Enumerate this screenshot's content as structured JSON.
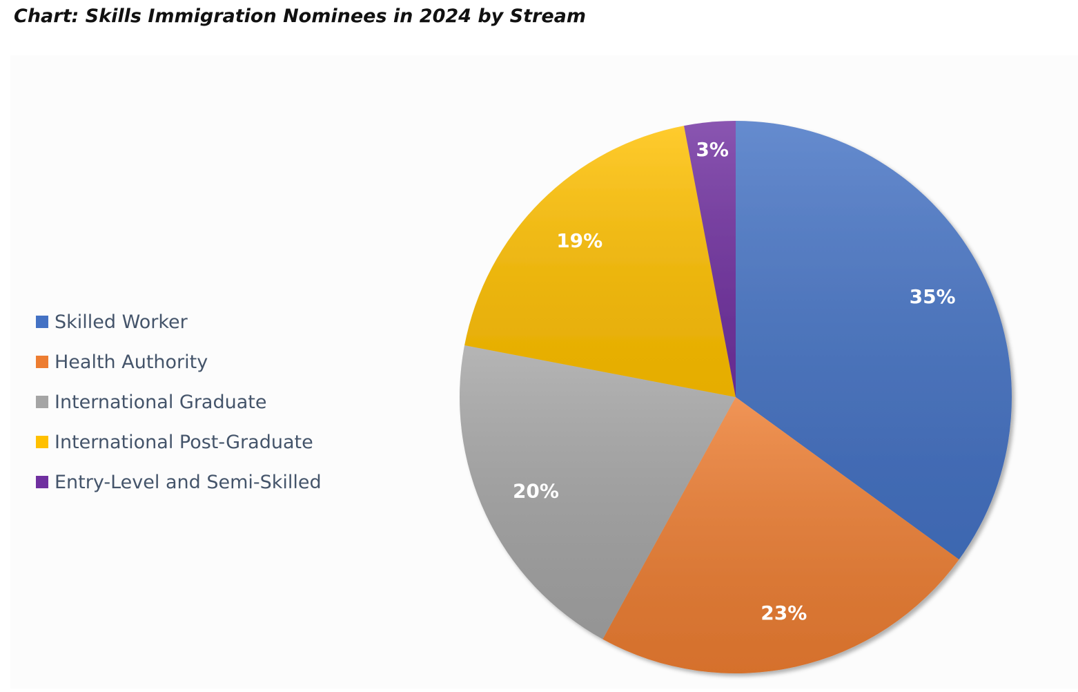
{
  "title": "Chart: Skills Immigration Nominees in 2024 by Stream",
  "chart_data": {
    "type": "pie",
    "title": "Chart: Skills Immigration Nominees in 2024 by Stream",
    "legend_position": "left",
    "slices": [
      {
        "name": "Skilled Worker",
        "value": 35,
        "label": "35%",
        "color": "#4472c4"
      },
      {
        "name": "Health Authority",
        "value": 23,
        "label": "23%",
        "color": "#ed7d31"
      },
      {
        "name": "International Graduate",
        "value": 20,
        "label": "20%",
        "color": "#a5a5a5"
      },
      {
        "name": "International Post-Graduate",
        "value": 19,
        "label": "19%",
        "color": "#ffc000"
      },
      {
        "name": "Entry-Level and Semi-Skilled",
        "value": 3,
        "label": "3%",
        "color": "#7030a0"
      }
    ]
  }
}
